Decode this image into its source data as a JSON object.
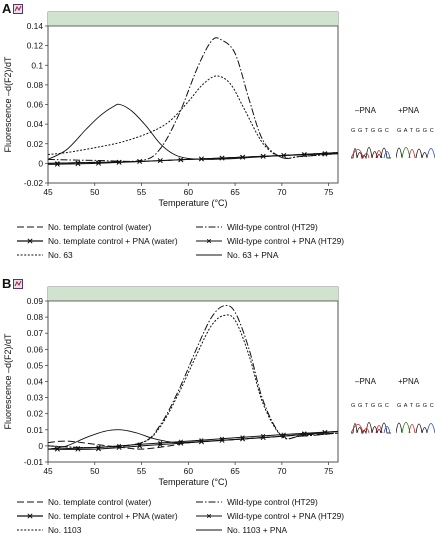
{
  "panels": [
    {
      "letter": "A",
      "chart_data": {
        "type": "line",
        "title": "",
        "xlabel": "Temperature (°C)",
        "ylabel": "Fluorescence –d(F2)/dT",
        "xlim": [
          45,
          76
        ],
        "ylim": [
          -0.02,
          0.14
        ],
        "xticks": [
          45,
          50,
          55,
          60,
          65,
          70,
          75
        ],
        "yticks": [
          -0.02,
          0,
          0.02,
          0.04,
          0.06,
          0.08,
          0.1,
          0.12,
          0.14
        ],
        "ytick_labels": [
          "-0.02",
          "0",
          "0.02",
          "0.04",
          "0.06",
          "0.08",
          "0.1",
          "0.12",
          "0.14"
        ],
        "grid": false,
        "series": [
          {
            "name": "No. template control (water)",
            "style": "longdash",
            "x": [
              45,
              50,
              55,
              60,
              65,
              70,
              76
            ],
            "y": [
              0.0,
              0.001,
              0.002,
              0.004,
              0.006,
              0.008,
              0.011
            ]
          },
          {
            "name": "No. template control + PNA (water)",
            "style": "cross",
            "x": [
              45,
              50,
              55,
              60,
              65,
              70,
              76
            ],
            "y": [
              -0.001,
              0.0,
              0.002,
              0.004,
              0.006,
              0.008,
              0.01
            ]
          },
          {
            "name": "Wild-type control (HT29)",
            "style": "dashdot",
            "x": [
              45,
              50,
              55,
              57,
              59,
              61,
              62.5,
              63.5,
              65,
              66.5,
              68,
              70,
              72,
              76
            ],
            "y": [
              0.004,
              0.003,
              0.003,
              0.015,
              0.05,
              0.098,
              0.125,
              0.126,
              0.112,
              0.065,
              0.023,
              0.006,
              0.007,
              0.01
            ]
          },
          {
            "name": "Wild-type control + PNA (HT29)",
            "style": "xmark",
            "x": [
              45,
              50,
              55,
              60,
              65,
              70,
              76
            ],
            "y": [
              0.0,
              0.001,
              0.002,
              0.004,
              0.006,
              0.008,
              0.011
            ]
          },
          {
            "name": "No. 63",
            "style": "dotted",
            "x": [
              45,
              47,
              50,
              53,
              56,
              58,
              60,
              61.5,
              63,
              64.5,
              66,
              68,
              70,
              72,
              76
            ],
            "y": [
              0.009,
              0.011,
              0.016,
              0.022,
              0.032,
              0.043,
              0.063,
              0.08,
              0.089,
              0.081,
              0.055,
              0.02,
              0.006,
              0.007,
              0.01
            ]
          },
          {
            "name": "No. 63 + PNA",
            "style": "solid",
            "x": [
              45,
              47,
              49,
              50.5,
              52,
              52.7,
              54,
              55.5,
              57,
              58.5,
              60,
              62,
              65,
              70,
              76
            ],
            "y": [
              0.004,
              0.014,
              0.034,
              0.048,
              0.058,
              0.06,
              0.053,
              0.038,
              0.02,
              0.009,
              0.005,
              0.004,
              0.005,
              0.008,
              0.011
            ]
          }
        ]
      },
      "legend": [
        {
          "label": "No. template control (water)",
          "style": "longdash"
        },
        {
          "label": "Wild-type control (HT29)",
          "style": "dashdot"
        },
        {
          "label": "No. template control + PNA (water)",
          "style": "cross"
        },
        {
          "label": "Wild-type control + PNA (HT29)",
          "style": "xmark"
        },
        {
          "label": "No. 63",
          "style": "dotted"
        },
        {
          "label": "No. 63 + PNA",
          "style": "solid"
        }
      ],
      "pna_minus_label": "–PNA",
      "pna_plus_label": "+PNA",
      "seq_minus": "G G T G G C",
      "seq_plus": "G A T G G C"
    },
    {
      "letter": "B",
      "chart_data": {
        "type": "line",
        "title": "",
        "xlabel": "Temperature (°C)",
        "ylabel": "Fluorescence –d(F2)/dT",
        "xlim": [
          45,
          76
        ],
        "ylim": [
          -0.01,
          0.09
        ],
        "xticks": [
          45,
          50,
          55,
          60,
          65,
          70,
          75
        ],
        "yticks": [
          -0.01,
          0,
          0.01,
          0.02,
          0.03,
          0.04,
          0.05,
          0.06,
          0.07,
          0.08,
          0.09
        ],
        "ytick_labels": [
          "-0.01",
          "0",
          "0.01",
          "0.02",
          "0.03",
          "0.04",
          "0.05",
          "0.06",
          "0.07",
          "0.08",
          "0.09"
        ],
        "grid": false,
        "series": [
          {
            "name": "No. template control (water)",
            "style": "longdash",
            "x": [
              45,
              47,
              50,
              53,
              55,
              58,
              60,
              65,
              70,
              76
            ],
            "y": [
              0.002,
              0.003,
              0.001,
              -0.001,
              -0.002,
              0.0,
              0.002,
              0.004,
              0.006,
              0.008
            ]
          },
          {
            "name": "No. template control + PNA (water)",
            "style": "cross",
            "x": [
              45,
              50,
              55,
              60,
              65,
              70,
              76
            ],
            "y": [
              -0.002,
              -0.002,
              0.0,
              0.002,
              0.004,
              0.006,
              0.009
            ]
          },
          {
            "name": "Wild-type control (HT29)",
            "style": "dashdot",
            "x": [
              45,
              50,
              55,
              57,
              59,
              61,
              62.5,
              63.8,
              65,
              66.5,
              68,
              70,
              72,
              76
            ],
            "y": [
              0.0,
              -0.001,
              0.002,
              0.013,
              0.035,
              0.062,
              0.08,
              0.087,
              0.083,
              0.06,
              0.028,
              0.006,
              0.006,
              0.008
            ]
          },
          {
            "name": "Wild-type control + PNA (HT29)",
            "style": "xmark",
            "x": [
              45,
              50,
              55,
              60,
              65,
              70,
              76
            ],
            "y": [
              -0.002,
              -0.001,
              0.001,
              0.003,
              0.005,
              0.007,
              0.009
            ]
          },
          {
            "name": "No. 1103",
            "style": "dotted",
            "x": [
              45,
              50,
              55,
              57,
              59,
              61,
              62.5,
              63.8,
              65,
              66.5,
              68,
              70,
              72,
              76
            ],
            "y": [
              0.0,
              -0.001,
              0.002,
              0.012,
              0.033,
              0.058,
              0.075,
              0.081,
              0.078,
              0.056,
              0.026,
              0.006,
              0.006,
              0.008
            ]
          },
          {
            "name": "No. 1103 + PNA",
            "style": "solid",
            "x": [
              45,
              47,
              49,
              51,
              52.8,
              54.5,
              56,
              57.5,
              59,
              62,
              65,
              70,
              76
            ],
            "y": [
              -0.002,
              0.0,
              0.005,
              0.009,
              0.01,
              0.008,
              0.005,
              0.003,
              0.002,
              0.003,
              0.004,
              0.006,
              0.009
            ]
          }
        ]
      },
      "legend": [
        {
          "label": "No. template control (water)",
          "style": "longdash"
        },
        {
          "label": "Wild-type control (HT29)",
          "style": "dashdot"
        },
        {
          "label": "No. template control + PNA (water)",
          "style": "cross"
        },
        {
          "label": "Wild-type control + PNA (HT29)",
          "style": "xmark"
        },
        {
          "label": "No. 1103",
          "style": "dotted"
        },
        {
          "label": "No. 1103 + PNA",
          "style": "solid"
        }
      ],
      "pna_minus_label": "–PNA",
      "pna_plus_label": "+PNA",
      "seq_minus": "G G T G G C",
      "seq_plus": "G A T G G C"
    }
  ],
  "colors": {
    "plot_header": "#cfe3cf",
    "base_A": "#1a7a1a",
    "base_C": "#2244cc",
    "base_G": "#111111",
    "base_T": "#cc2222"
  }
}
